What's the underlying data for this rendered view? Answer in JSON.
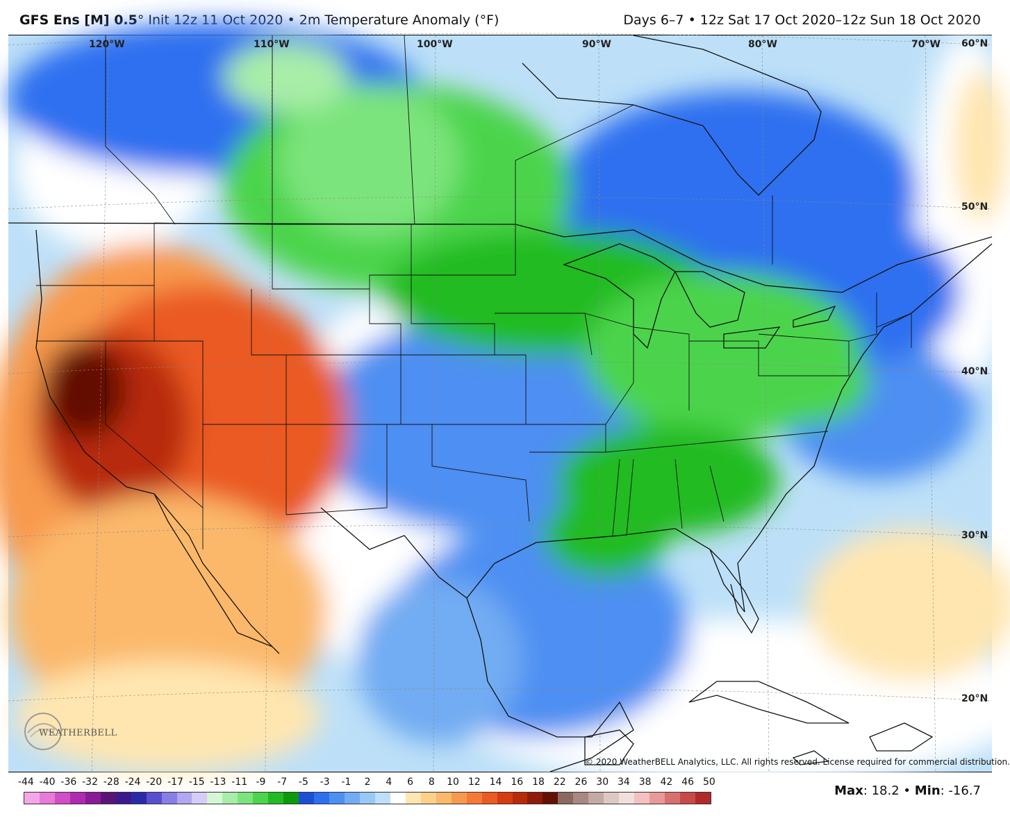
{
  "header": {
    "model": "GFS Ens [M] 0.5",
    "model_suffix": "°",
    "init": " Init 12z 11 Oct 2020",
    "sep": " • ",
    "variable": "2m Temperature Anomaly (°F)",
    "valid": "Days 6–7 • 12z Sat 17 Oct 2020–12z Sun 18 Oct 2020"
  },
  "graticule": {
    "lon_labels": [
      "120°W",
      "110°W",
      "100°W",
      "90°W",
      "80°W",
      "70°W"
    ],
    "lat_labels": [
      "60°N",
      "50°N",
      "40°N",
      "30°N",
      "20°N"
    ]
  },
  "legend": {
    "ticks": [
      "-44",
      "-40",
      "-36",
      "-32",
      "-28",
      "-24",
      "-20",
      "-17",
      "-15",
      "-13",
      "-11",
      "-9",
      "-7",
      "-5",
      "-3",
      "-1",
      "2",
      "4",
      "6",
      "8",
      "10",
      "12",
      "14",
      "16",
      "18",
      "22",
      "26",
      "30",
      "34",
      "38",
      "42",
      "46",
      "50"
    ],
    "colors": [
      "#f4a6e8",
      "#e87ad8",
      "#d04ec6",
      "#b02ab0",
      "#8a1a96",
      "#5a1478",
      "#3a1a8c",
      "#2a2aa8",
      "#5a4ed0",
      "#8a7ee6",
      "#b2a6f0",
      "#d6ccf8",
      "#d6f7d6",
      "#a8eda8",
      "#7ce47c",
      "#4cd44c",
      "#22bb22",
      "#0c9a0c",
      "#1a4fd6",
      "#2e6ff0",
      "#4e8ff2",
      "#72acf2",
      "#98c8f6",
      "#bde0f8",
      "#ffffff",
      "#ffe6b0",
      "#fdd08a",
      "#fbb86a",
      "#f89a4e",
      "#f47a36",
      "#ea5a22",
      "#d83a12",
      "#b82a0a",
      "#8e1c08",
      "#641004",
      "#8a6a60",
      "#a88880",
      "#c4aaa2",
      "#dec8c2",
      "#f3dede",
      "#f4c0c0",
      "#e89a9a",
      "#d87070",
      "#c64a4a",
      "#b02a2a"
    ],
    "max_label": "Max",
    "max_value": ": 18.2",
    "min_label": "Min",
    "min_value": ": -16.7",
    "sep": " • "
  },
  "map": {
    "copyright": "© 2020 WeatherBELL Analytics, LLC. All rights reserved. License required for commercial distribution.",
    "logo_text": "WEATHERBELL"
  }
}
